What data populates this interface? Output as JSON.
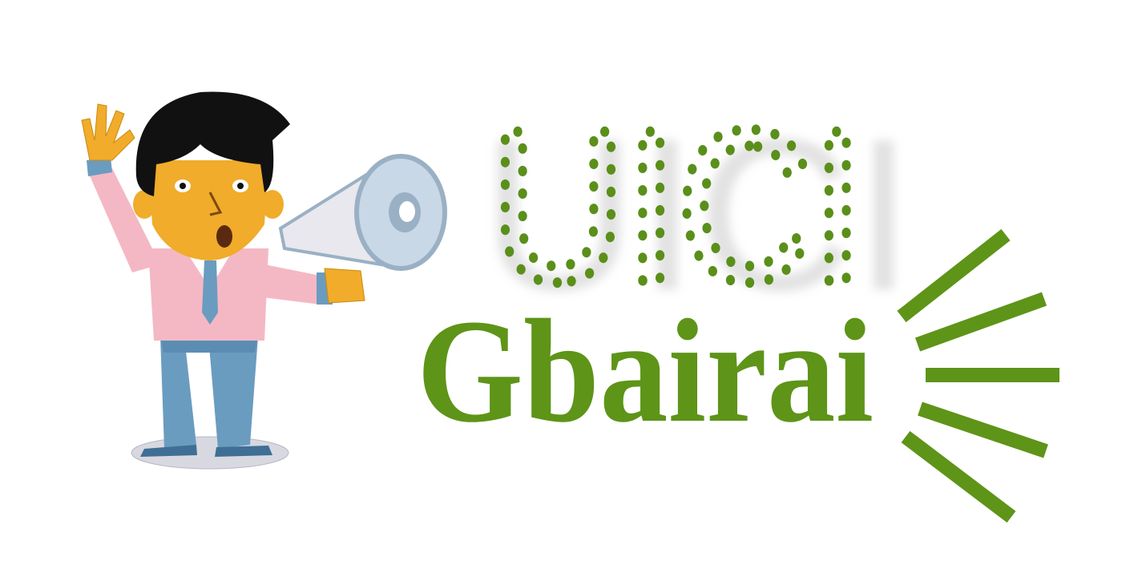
{
  "logo": {
    "acronym": "UICI",
    "name": "Gbairai"
  }
}
